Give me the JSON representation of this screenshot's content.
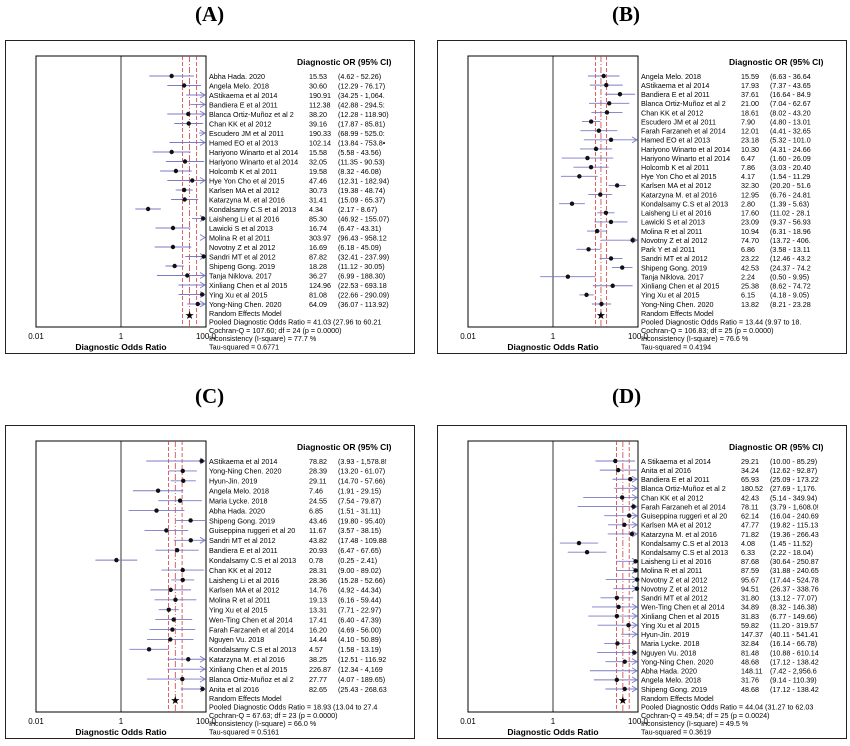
{
  "chart_data": [
    {
      "type": "forest",
      "panel_label": "(A)",
      "header": "Diagnostic OR (95% CI)",
      "xlabel": "Diagnostic Odds Ratio",
      "x_scale": "log",
      "xlim": [
        0.01,
        100.0
      ],
      "x_ticks": [
        "0.01",
        "1",
        "100.0"
      ],
      "studies": [
        {
          "name": "Abha Hada. 2020",
          "or": 15.53,
          "ci": "(4.62 - 52.26)",
          "lo": 4.62,
          "hi": 52.26
        },
        {
          "name": "Angela Melo. 2018",
          "or": 30.6,
          "ci": "(12.29 - 76.17)",
          "lo": 12.29,
          "hi": 76.17
        },
        {
          "name": "AStikaema et al 2014",
          "or": 190.91,
          "ci": "(34.25 - 1,064.",
          "lo": 34.25,
          "hi": 1064
        },
        {
          "name": "Bandiera E et al 2011",
          "or": 112.38,
          "ci": "(42.88 - 294.5:",
          "lo": 42.88,
          "hi": 294.5
        },
        {
          "name": "Blanca Ortiz-Muñoz  et al 2",
          "or": 38.2,
          "ci": "(12.28 - 118.90)",
          "lo": 12.28,
          "hi": 118.9
        },
        {
          "name": "Chan KK et al 2012",
          "or": 39.16,
          "ci": "(17.87 - 85.81)",
          "lo": 17.87,
          "hi": 85.81
        },
        {
          "name": "Escudero JM et al 2011",
          "or": 190.33,
          "ci": "(68.99 - 525.0:",
          "lo": 68.99,
          "hi": 525
        },
        {
          "name": "Hamed EO et al 2013",
          "or": 102.14,
          "ci": "(13.84 - 753.8•",
          "lo": 13.84,
          "hi": 753.8
        },
        {
          "name": "Hariyono Winarto et al 2014",
          "or": 15.58,
          "ci": "(5.58 - 43.56)",
          "lo": 5.58,
          "hi": 43.56
        },
        {
          "name": "Hariyono Winarto et al 2014",
          "or": 32.05,
          "ci": "(11.35 - 90.53)",
          "lo": 11.35,
          "hi": 90.53
        },
        {
          "name": "Holcomb K et al 2011",
          "or": 19.58,
          "ci": "(8.32 - 46.08)",
          "lo": 8.32,
          "hi": 46.08
        },
        {
          "name": "Hye Yon Cho et al 2015",
          "or": 47.46,
          "ci": "(12.31 - 182.94)",
          "lo": 12.31,
          "hi": 182.94
        },
        {
          "name": "Karlsen MA et al 2012",
          "or": 30.73,
          "ci": "(19.38 - 48.74)",
          "lo": 19.38,
          "hi": 48.74
        },
        {
          "name": "Katarzyna M.  et al 2016",
          "or": 31.41,
          "ci": "(15.09 - 65.37)",
          "lo": 15.09,
          "hi": 65.37
        },
        {
          "name": "Kondalsamy C.S et al 2013",
          "or": 4.34,
          "ci": "(2.17 - 8.67)",
          "lo": 2.17,
          "hi": 8.67
        },
        {
          "name": "Laisheng Li et al 2016",
          "or": 85.3,
          "ci": "(46.92 - 155.07)",
          "lo": 46.92,
          "hi": 155.07
        },
        {
          "name": "Lawicki S et al 2013",
          "or": 16.74,
          "ci": "(6.47 - 43.31)",
          "lo": 6.47,
          "hi": 43.31
        },
        {
          "name": "Molina R et al 2011",
          "or": 303.97,
          "ci": "(96.43 - 958.12",
          "lo": 96.43,
          "hi": 958.12
        },
        {
          "name": "Novotny Z et al 2012",
          "or": 16.69,
          "ci": "(6.18 - 45.09)",
          "lo": 6.18,
          "hi": 45.09
        },
        {
          "name": "Sandri MT et al 2012",
          "or": 87.82,
          "ci": "(32.41 - 237.99)",
          "lo": 32.41,
          "hi": 237.99
        },
        {
          "name": "Shipeng Gong. 2019",
          "or": 18.28,
          "ci": "(11.12 - 30.05)",
          "lo": 11.12,
          "hi": 30.05
        },
        {
          "name": "Tanja Niklova. 2017",
          "or": 36.27,
          "ci": "(6.99 - 188.30)",
          "lo": 6.99,
          "hi": 188.3
        },
        {
          "name": "Xinliang Chen et al 2015",
          "or": 124.96,
          "ci": "(22.53 - 693.18",
          "lo": 22.53,
          "hi": 693.18
        },
        {
          "name": "Ying Xu et al 2015",
          "or": 81.08,
          "ci": "(22.66 - 290.09)",
          "lo": 22.66,
          "hi": 290.09
        },
        {
          "name": "Yong-Ning Chen. 2020",
          "or": 64.09,
          "ci": "(36.07 - 113.92)",
          "lo": 36.07,
          "hi": 113.92
        }
      ],
      "pooled": {
        "or": 41.03,
        "lo": 27.96,
        "hi": 60.21
      },
      "summary": [
        "Random Effects Model",
        "Pooled Diagnostic Odds Ratio = 41.03 (27.96 to 60.21",
        "Cochran-Q = 107.60; df =  24 (p = 0.0000)",
        "Inconsistency (I-square) = 77.7 %",
        "Tau-squared = 0.6771"
      ]
    },
    {
      "type": "forest",
      "panel_label": "(B)",
      "header": "Diagnostic OR (95% CI)",
      "xlabel": "Diagnostic Odds Ratio",
      "x_scale": "log",
      "xlim": [
        0.01,
        100.0
      ],
      "x_ticks": [
        "0.01",
        "1",
        "100.0"
      ],
      "studies": [
        {
          "name": "Angela Melo. 2018",
          "or": 15.59,
          "ci": "(6.63 - 36.64",
          "lo": 6.63,
          "hi": 36.64
        },
        {
          "name": "AStikaema et al 2014",
          "or": 17.93,
          "ci": "(7.37 - 43.65",
          "lo": 7.37,
          "hi": 43.65
        },
        {
          "name": "Bandiera E et al 2011",
          "or": 37.61,
          "ci": "(16.64 - 84.9",
          "lo": 16.64,
          "hi": 84.9
        },
        {
          "name": "Blanca Ortiz-Muñoz  et al  2",
          "or": 21.0,
          "ci": "(7.04 - 62.67",
          "lo": 7.04,
          "hi": 62.67
        },
        {
          "name": "Chan KK et al 2012",
          "or": 18.61,
          "ci": "(8.02 - 43.20",
          "lo": 8.02,
          "hi": 43.2
        },
        {
          "name": "Escudero JM et al 2011",
          "or": 7.9,
          "ci": "(4.80 - 13.01",
          "lo": 4.8,
          "hi": 13.01
        },
        {
          "name": "Farah Farzaneh et al 2014",
          "or": 12.01,
          "ci": "(4.41 - 32.65",
          "lo": 4.41,
          "hi": 32.65
        },
        {
          "name": "Hamed EO et al 2013",
          "or": 23.18,
          "ci": "(5.32 - 101.0",
          "lo": 5.32,
          "hi": 101.0
        },
        {
          "name": "Hariyono Winarto et al 2014",
          "or": 10.3,
          "ci": "(4.31 - 24.66",
          "lo": 4.31,
          "hi": 24.66
        },
        {
          "name": "Hariyono Winarto et al 2014",
          "or": 6.47,
          "ci": "(1.60 - 26.09",
          "lo": 1.6,
          "hi": 26.09
        },
        {
          "name": "Holcomb K et al 2011",
          "or": 7.86,
          "ci": "(3.03 - 20.40",
          "lo": 3.03,
          "hi": 20.4
        },
        {
          "name": "Hye Yon Cho et al 2015",
          "or": 4.17,
          "ci": "(1.54 - 11.29",
          "lo": 1.54,
          "hi": 11.29
        },
        {
          "name": "Karlsen MA et al 2012",
          "or": 32.3,
          "ci": "(20.20 - 51.6",
          "lo": 20.2,
          "hi": 51.6
        },
        {
          "name": "Katarzyna M.  et al 2016",
          "or": 12.95,
          "ci": "(6.76 - 24.81",
          "lo": 6.76,
          "hi": 24.81
        },
        {
          "name": "Kondalsamy C.S et al 2013",
          "or": 2.8,
          "ci": "(1.39 - 5.63)",
          "lo": 1.39,
          "hi": 5.63
        },
        {
          "name": "Laisheng Li et al 2016",
          "or": 17.6,
          "ci": "(11.02 - 28.1",
          "lo": 11.02,
          "hi": 28.1
        },
        {
          "name": "Lawicki S et al 2013",
          "or": 23.09,
          "ci": "(9.37 - 56.93",
          "lo": 9.37,
          "hi": 56.93
        },
        {
          "name": "Molina R et al 2011",
          "or": 10.94,
          "ci": "(6.31 - 18.96",
          "lo": 6.31,
          "hi": 18.96
        },
        {
          "name": "Novotny Z et al 2012",
          "or": 74.7,
          "ci": "(13.72 - 406.",
          "lo": 13.72,
          "hi": 406
        },
        {
          "name": "Park Y et al 2011",
          "or": 6.86,
          "ci": "(3.58 - 13.11",
          "lo": 3.58,
          "hi": 13.11
        },
        {
          "name": "Sandri MT et al 2012",
          "or": 23.22,
          "ci": "(12.46 - 43.2",
          "lo": 12.46,
          "hi": 43.2
        },
        {
          "name": "Shipeng Gong. 2019",
          "or": 42.53,
          "ci": "(24.37 - 74.2",
          "lo": 24.37,
          "hi": 74.2
        },
        {
          "name": "Tanja Niklova. 2017",
          "or": 2.24,
          "ci": "(0.50 - 9.95)",
          "lo": 0.5,
          "hi": 9.95
        },
        {
          "name": "Xinliang Chen et al 2015",
          "or": 25.38,
          "ci": "(8.62 - 74.72",
          "lo": 8.62,
          "hi": 74.72
        },
        {
          "name": "Ying Xu et al 2015",
          "or": 6.15,
          "ci": "(4.18 - 9.05)",
          "lo": 4.18,
          "hi": 9.05
        },
        {
          "name": "Yong-Ning Chen. 2020",
          "or": 13.82,
          "ci": "(8.21 - 23.28",
          "lo": 8.21,
          "hi": 23.28
        }
      ],
      "pooled": {
        "or": 13.44,
        "lo": 9.97,
        "hi": 18.1
      },
      "summary": [
        "Random Effects Model",
        "Pooled Diagnostic Odds Ratio = 13.44 (9.97 to 18.",
        "Cochran-Q = 106.83; df =  25 (p = 0.0000)",
        "Inconsistency (I-square) = 76.6 %",
        "Tau-squared = 0.4194"
      ]
    },
    {
      "type": "forest",
      "panel_label": "(C)",
      "header": "Diagnostic OR (95% CI)",
      "xlabel": "Diagnostic Odds Ratio",
      "x_scale": "log",
      "xlim": [
        0.01,
        100.0
      ],
      "x_ticks": [
        "0.01",
        "1",
        "100.0"
      ],
      "studies": [
        {
          "name": "AStikaema et al 2014",
          "or": 78.82,
          "ci": "(3.93 - 1,578.8!",
          "lo": 3.93,
          "hi": 1578.8
        },
        {
          "name": "Yong-Ning Chen. 2020",
          "or": 28.39,
          "ci": "(13.20 - 61.07)",
          "lo": 13.2,
          "hi": 61.07
        },
        {
          "name": "Hyun-Jin. 2019",
          "or": 29.11,
          "ci": "(14.70 - 57.66)",
          "lo": 14.7,
          "hi": 57.66
        },
        {
          "name": "Angela Melo. 2018",
          "or": 7.46,
          "ci": "(1.91 - 29.15)",
          "lo": 1.91,
          "hi": 29.15
        },
        {
          "name": "Maria Lycke. 2018",
          "or": 24.55,
          "ci": "(7.54 - 79.87)",
          "lo": 7.54,
          "hi": 79.87
        },
        {
          "name": "Abha Hada. 2020",
          "or": 6.85,
          "ci": "(1.51 - 31.11)",
          "lo": 1.51,
          "hi": 31.11
        },
        {
          "name": "Shipeng Gong. 2019",
          "or": 43.46,
          "ci": "(19.80 - 95.40)",
          "lo": 19.8,
          "hi": 95.4
        },
        {
          "name": "Guiseppina ruggeri et al 20",
          "or": 11.67,
          "ci": "(3.57 - 38.15)",
          "lo": 3.57,
          "hi": 38.15
        },
        {
          "name": "Sandri MT et al 2012",
          "or": 43.82,
          "ci": "(17.48 - 109.88",
          "lo": 17.48,
          "hi": 109.88
        },
        {
          "name": "Bandiera E et al 2011",
          "or": 20.93,
          "ci": "(6.47 - 67.65)",
          "lo": 6.47,
          "hi": 67.65
        },
        {
          "name": "Kondalsamy C.S et al 2013",
          "or": 0.78,
          "ci": "(0.25 - 2.41)",
          "lo": 0.25,
          "hi": 2.41
        },
        {
          "name": "Chan KK et al 2012",
          "or": 28.31,
          "ci": "(9.00 - 89.02)",
          "lo": 9.0,
          "hi": 89.02
        },
        {
          "name": "Laisheng Li et al 2016",
          "or": 28.36,
          "ci": "(15.28 - 52.66)",
          "lo": 15.28,
          "hi": 52.66
        },
        {
          "name": "Karlsen MA et al 2012",
          "or": 14.76,
          "ci": "(4.92 - 44.34)",
          "lo": 4.92,
          "hi": 44.34
        },
        {
          "name": "Molina R et al 2011",
          "or": 19.13,
          "ci": "(6.16 - 59.44)",
          "lo": 6.16,
          "hi": 59.44
        },
        {
          "name": "Ying Xu et al 2015",
          "or": 13.31,
          "ci": "(7.71 - 22.97)",
          "lo": 7.71,
          "hi": 22.97
        },
        {
          "name": "Wen-Ting Chen et al 2014",
          "or": 17.41,
          "ci": "(6.40 - 47.39)",
          "lo": 6.4,
          "hi": 47.39
        },
        {
          "name": "Farah Farzaneh et al 2014",
          "or": 16.2,
          "ci": "(4.69 - 56.00)",
          "lo": 4.69,
          "hi": 56.0
        },
        {
          "name": "Nguyen Vu. 2018",
          "or": 14.44,
          "ci": "(4.10 - 50.89)",
          "lo": 4.1,
          "hi": 50.89
        },
        {
          "name": "Kondalsamy C.S et al 2013",
          "or": 4.57,
          "ci": "(1.58 - 13.19)",
          "lo": 1.58,
          "hi": 13.19
        },
        {
          "name": "Katarzyna M.  et al 2016",
          "or": 38.25,
          "ci": "(12.51 - 116.92",
          "lo": 12.51,
          "hi": 116.92
        },
        {
          "name": "Xinliang Chen et al 2015",
          "or": 226.87,
          "ci": "(12.34 - 4,169",
          "lo": 12.34,
          "hi": 4169
        },
        {
          "name": "Blanca Ortiz-Muñoz  et al 2",
          "or": 27.77,
          "ci": "(4.07 - 189.65)",
          "lo": 4.07,
          "hi": 189.65
        },
        {
          "name": "Anita et al 2016",
          "or": 82.65,
          "ci": "(25.43 - 268.63",
          "lo": 25.43,
          "hi": 268.63
        }
      ],
      "pooled": {
        "or": 18.93,
        "lo": 13.04,
        "hi": 27.4
      },
      "summary": [
        "Random Effects Model",
        "Pooled Diagnostic Odds Ratio = 18.93 (13.04 to 27.4",
        "Cochran-Q = 67.63; df =  23 (p = 0.0000)",
        "Inconsistency (I-square) = 66.0 %",
        "Tau-squared = 0.5161"
      ]
    },
    {
      "type": "forest",
      "panel_label": "(D)",
      "header": "Diagnostic OR (95% CI)",
      "xlabel": "Diagnostic Odds Ratio",
      "x_scale": "log",
      "xlim": [
        0.01,
        100.0
      ],
      "x_ticks": [
        "0.01",
        "1",
        "100.0"
      ],
      "studies": [
        {
          "name": "A Stikaema et al 2014",
          "or": 29.21,
          "ci": "(10.00 - 85.29)",
          "lo": 10.0,
          "hi": 85.29
        },
        {
          "name": "Anita et al 2016",
          "or": 34.24,
          "ci": "(12.62 - 92.87)",
          "lo": 12.62,
          "hi": 92.87
        },
        {
          "name": "Bandiera E et al 2011",
          "or": 65.93,
          "ci": "(25.09 - 173.22",
          "lo": 25.09,
          "hi": 173.22
        },
        {
          "name": "Blanca Ortiz-Muñoz  et al 2",
          "or": 180.52,
          "ci": "(27.69 - 1,176.",
          "lo": 27.69,
          "hi": 1176
        },
        {
          "name": "Chan KK et al 2012",
          "or": 42.43,
          "ci": "(5.14 - 349.94)",
          "lo": 5.14,
          "hi": 349.94
        },
        {
          "name": "Farah Farzaneh et al 2014",
          "or": 78.11,
          "ci": "(3.79 - 1,608.0!",
          "lo": 3.79,
          "hi": 1608.0
        },
        {
          "name": "Guiseppina ruggeri et al 20",
          "or": 62.14,
          "ci": "(16.04 - 240.69",
          "lo": 16.04,
          "hi": 240.69
        },
        {
          "name": "Karlsen MA et al 2012",
          "or": 47.77,
          "ci": "(19.82 - 115.13",
          "lo": 19.82,
          "hi": 115.13
        },
        {
          "name": "Katarzyna M.  et al 2016",
          "or": 71.82,
          "ci": "(19.36 - 266.43",
          "lo": 19.36,
          "hi": 266.43
        },
        {
          "name": "Kondalsamy C.S et al 2013",
          "or": 4.08,
          "ci": "(1.45 - 11.52)",
          "lo": 1.45,
          "hi": 11.52
        },
        {
          "name": "Kondalsamy C.S et al 2013",
          "or": 6.33,
          "ci": "(2.22 - 18.04)",
          "lo": 2.22,
          "hi": 18.04
        },
        {
          "name": "Laisheng Li et al 2016",
          "or": 87.68,
          "ci": "(30.64 - 250.87",
          "lo": 30.64,
          "hi": 250.87
        },
        {
          "name": "Molina R et al 2011",
          "or": 87.59,
          "ci": "(31.88 - 240.65",
          "lo": 31.88,
          "hi": 240.65
        },
        {
          "name": "Novotny Z et al 2012",
          "or": 95.67,
          "ci": "(17.44 - 524.78",
          "lo": 17.44,
          "hi": 524.78
        },
        {
          "name": "Novotny Z et al 2012",
          "or": 94.51,
          "ci": "(26.37 - 338.76",
          "lo": 26.37,
          "hi": 338.76
        },
        {
          "name": "Sandri MT et al 2012",
          "or": 31.8,
          "ci": "(13.12 - 77.07)",
          "lo": 13.12,
          "hi": 77.07
        },
        {
          "name": "Wen-Ting Chen et al 2014",
          "or": 34.89,
          "ci": "(8.32 - 146.38)",
          "lo": 8.32,
          "hi": 146.38
        },
        {
          "name": "Xinliang Chen et al 2015",
          "or": 31.83,
          "ci": "(6.77 - 149.66)",
          "lo": 6.77,
          "hi": 149.66
        },
        {
          "name": "Ying Xu et al 2015",
          "or": 59.82,
          "ci": "(11.20 - 319.57",
          "lo": 11.2,
          "hi": 319.57
        },
        {
          "name": "Hyun-Jin. 2019",
          "or": 147.37,
          "ci": "(40.11 - 541.41",
          "lo": 40.11,
          "hi": 541.41
        },
        {
          "name": "Maria Lycke. 2018",
          "or": 32.84,
          "ci": "(16.14 - 66.78)",
          "lo": 16.14,
          "hi": 66.78
        },
        {
          "name": "Nguyen Vu. 2018",
          "or": 81.48,
          "ci": "(10.88 - 610.14",
          "lo": 10.88,
          "hi": 610.14
        },
        {
          "name": "Yong-Ning Chen. 2020",
          "or": 48.68,
          "ci": "(17.12 - 138.42",
          "lo": 17.12,
          "hi": 138.42
        },
        {
          "name": "Abha Hada. 2020",
          "or": 148.11,
          "ci": "(7.42 - 2,956.6",
          "lo": 7.42,
          "hi": 2956.6
        },
        {
          "name": "Angela Melo. 2018",
          "or": 31.76,
          "ci": "(9.14 - 110.39)",
          "lo": 9.14,
          "hi": 110.39
        },
        {
          "name": "Shipeng Gong. 2019",
          "or": 48.68,
          "ci": "(17.12 - 138.42",
          "lo": 17.12,
          "hi": 138.42
        }
      ],
      "pooled": {
        "or": 44.04,
        "lo": 31.27,
        "hi": 62.03
      },
      "summary": [
        "Random Effects Model",
        "Pooled Diagnostic Odds Ratio = 44.04 (31.27 to 62.03",
        "Cochran-Q = 49.54; df =  25 (p = 0.0024)",
        "Inconsistency (I-square) = 49.5 %",
        "Tau-squared = 0.3619"
      ]
    }
  ]
}
